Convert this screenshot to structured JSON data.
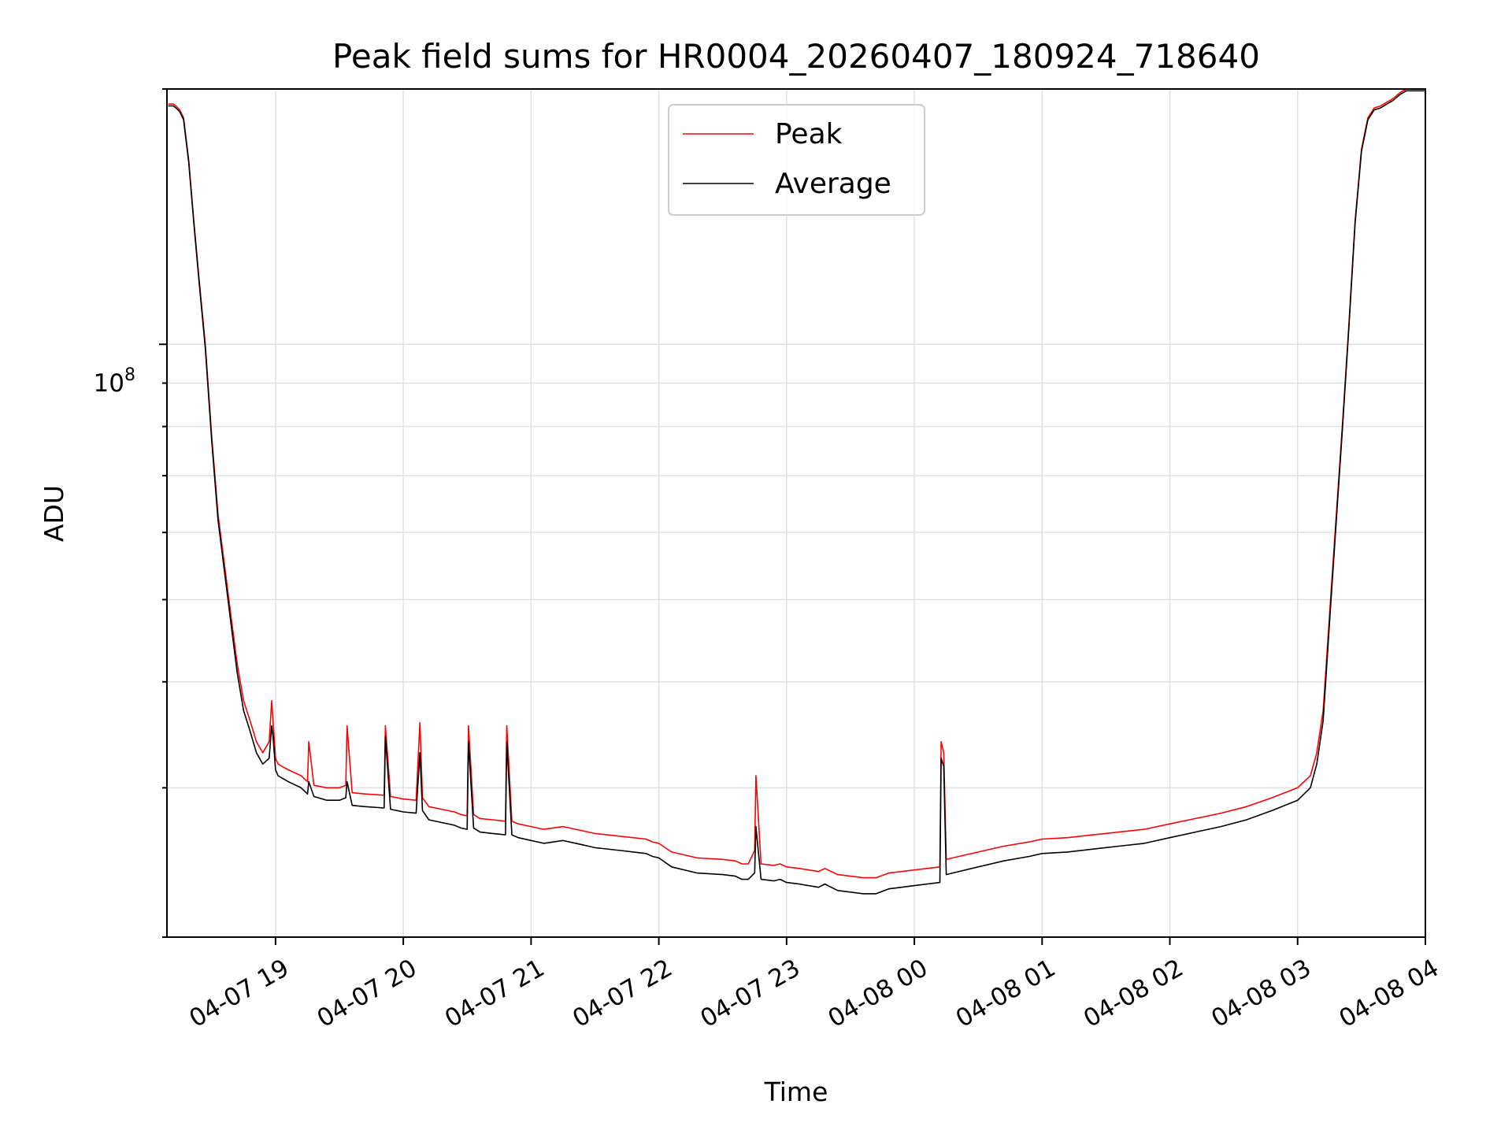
{
  "chart_data": {
    "type": "line",
    "title": "Peak field sums for HR0004_20260407_180924_718640",
    "xlabel": "Time",
    "ylabel": "ADU",
    "yscale": "log",
    "ylim": [
      20000000,
      200000000
    ],
    "xlim_hours": [
      18.15,
      28.0
    ],
    "grid": true,
    "legend_position": "upper center",
    "x_ticks": [
      {
        "label": "04-07 19",
        "hour": 19
      },
      {
        "label": "04-07 20",
        "hour": 20
      },
      {
        "label": "04-07 21",
        "hour": 21
      },
      {
        "label": "04-07 22",
        "hour": 22
      },
      {
        "label": "04-07 23",
        "hour": 23
      },
      {
        "label": "04-08 00",
        "hour": 24
      },
      {
        "label": "04-08 01",
        "hour": 25
      },
      {
        "label": "04-08 02",
        "hour": 26
      },
      {
        "label": "04-08 03",
        "hour": 27
      },
      {
        "label": "04-08 04",
        "hour": 28
      }
    ],
    "y_major_tick": {
      "label_base": "10",
      "label_exp": "8",
      "value": 100000000
    },
    "series": [
      {
        "name": "Peak",
        "color": "#ff0000",
        "x": [
          18.16,
          18.2,
          18.22,
          18.25,
          18.28,
          18.32,
          18.36,
          18.4,
          18.45,
          18.5,
          18.55,
          18.6,
          18.65,
          18.7,
          18.75,
          18.8,
          18.85,
          18.9,
          18.95,
          18.97,
          18.98,
          19.0,
          19.02,
          19.05,
          19.1,
          19.2,
          19.25,
          19.26,
          19.3,
          19.4,
          19.5,
          19.55,
          19.56,
          19.6,
          19.7,
          19.85,
          19.86,
          19.9,
          20.0,
          20.1,
          20.13,
          20.15,
          20.2,
          20.3,
          20.4,
          20.45,
          20.5,
          20.51,
          20.55,
          20.6,
          20.7,
          20.8,
          20.81,
          20.85,
          20.9,
          21.0,
          21.1,
          21.25,
          21.4,
          21.5,
          21.7,
          21.9,
          21.95,
          22.0,
          22.1,
          22.3,
          22.5,
          22.6,
          22.65,
          22.7,
          22.75,
          22.76,
          22.8,
          22.9,
          22.95,
          23.0,
          23.1,
          23.25,
          23.3,
          23.4,
          23.5,
          23.6,
          23.7,
          23.8,
          23.9,
          24.0,
          24.1,
          24.2,
          24.21,
          24.23,
          24.25,
          24.3,
          24.5,
          24.7,
          24.9,
          25.0,
          25.2,
          25.4,
          25.6,
          25.8,
          26.0,
          26.2,
          26.4,
          26.6,
          26.8,
          27.0,
          27.1,
          27.15,
          27.2,
          27.25,
          27.3,
          27.35,
          27.4,
          27.45,
          27.5,
          27.55,
          27.6,
          27.65,
          27.7,
          27.75,
          27.8,
          27.85,
          28.0
        ],
        "values": [
          192000000,
          192000000,
          191000000,
          189000000,
          185000000,
          165000000,
          140000000,
          120000000,
          100000000,
          78000000,
          63000000,
          55000000,
          48000000,
          42000000,
          38000000,
          36000000,
          34000000,
          33000000,
          34000000,
          38000000,
          36000000,
          32500000,
          32000000,
          31800000,
          31500000,
          31000000,
          30500000,
          34000000,
          30200000,
          30000000,
          30000000,
          30200000,
          35500000,
          29600000,
          29500000,
          29400000,
          35500000,
          29300000,
          29100000,
          29000000,
          35800000,
          29200000,
          28500000,
          28300000,
          28100000,
          27900000,
          27800000,
          35500000,
          27900000,
          27600000,
          27500000,
          27400000,
          35500000,
          27400000,
          27200000,
          27000000,
          26800000,
          27000000,
          26700000,
          26500000,
          26300000,
          26100000,
          25900000,
          25800000,
          25200000,
          24800000,
          24700000,
          24600000,
          24400000,
          24400000,
          25300000,
          31000000,
          24400000,
          24300000,
          24400000,
          24200000,
          24100000,
          23900000,
          24100000,
          23700000,
          23600000,
          23500000,
          23500000,
          23800000,
          23900000,
          24000000,
          24100000,
          24200000,
          34000000,
          33000000,
          24700000,
          24800000,
          25200000,
          25600000,
          25900000,
          26100000,
          26200000,
          26400000,
          26600000,
          26800000,
          27200000,
          27600000,
          28000000,
          28500000,
          29200000,
          30000000,
          31000000,
          33000000,
          37000000,
          48000000,
          62000000,
          80000000,
          105000000,
          140000000,
          170000000,
          185000000,
          190000000,
          191000000,
          193000000,
          195000000,
          198000000,
          200000000,
          200000000
        ]
      },
      {
        "name": "Average",
        "color": "#000000",
        "x": [
          18.16,
          18.2,
          18.22,
          18.25,
          18.28,
          18.32,
          18.36,
          18.4,
          18.45,
          18.5,
          18.55,
          18.6,
          18.65,
          18.7,
          18.75,
          18.8,
          18.85,
          18.9,
          18.95,
          18.97,
          18.98,
          19.0,
          19.02,
          19.05,
          19.1,
          19.2,
          19.25,
          19.26,
          19.3,
          19.4,
          19.5,
          19.55,
          19.56,
          19.6,
          19.7,
          19.85,
          19.86,
          19.9,
          20.0,
          20.1,
          20.13,
          20.15,
          20.2,
          20.3,
          20.4,
          20.45,
          20.5,
          20.51,
          20.55,
          20.6,
          20.7,
          20.8,
          20.81,
          20.85,
          20.9,
          21.0,
          21.1,
          21.25,
          21.4,
          21.5,
          21.7,
          21.9,
          21.95,
          22.0,
          22.1,
          22.3,
          22.5,
          22.6,
          22.65,
          22.7,
          22.75,
          22.76,
          22.8,
          22.9,
          22.95,
          23.0,
          23.1,
          23.25,
          23.3,
          23.4,
          23.5,
          23.6,
          23.7,
          23.8,
          23.9,
          24.0,
          24.1,
          24.2,
          24.21,
          24.23,
          24.25,
          24.3,
          24.5,
          24.7,
          24.9,
          25.0,
          25.2,
          25.4,
          25.6,
          25.8,
          26.0,
          26.2,
          26.4,
          26.6,
          26.8,
          27.0,
          27.1,
          27.15,
          27.2,
          27.25,
          27.3,
          27.35,
          27.4,
          27.45,
          27.5,
          27.55,
          27.6,
          27.65,
          27.7,
          27.75,
          27.8,
          27.85,
          28.0
        ],
        "values": [
          191000000,
          191000000,
          190000000,
          188000000,
          184000000,
          164000000,
          139000000,
          119000000,
          99000000,
          77000000,
          62000000,
          54000000,
          47000000,
          41000000,
          37000000,
          35000000,
          33000000,
          32000000,
          32500000,
          35500000,
          34500000,
          31500000,
          31000000,
          30800000,
          30500000,
          30000000,
          29500000,
          30500000,
          29300000,
          29000000,
          29000000,
          29200000,
          30500000,
          28600000,
          28500000,
          28400000,
          34500000,
          28300000,
          28100000,
          28000000,
          33000000,
          28200000,
          27500000,
          27300000,
          27100000,
          26900000,
          26800000,
          34000000,
          26900000,
          26600000,
          26500000,
          26400000,
          34000000,
          26400000,
          26200000,
          26000000,
          25800000,
          26000000,
          25700000,
          25500000,
          25300000,
          25100000,
          24900000,
          24800000,
          24200000,
          23800000,
          23700000,
          23600000,
          23400000,
          23400000,
          23800000,
          27000000,
          23400000,
          23300000,
          23400000,
          23200000,
          23100000,
          22900000,
          23100000,
          22700000,
          22600000,
          22500000,
          22500000,
          22800000,
          22900000,
          23000000,
          23100000,
          23200000,
          32500000,
          31800000,
          23700000,
          23800000,
          24200000,
          24600000,
          24900000,
          25100000,
          25200000,
          25400000,
          25600000,
          25800000,
          26200000,
          26600000,
          27000000,
          27500000,
          28200000,
          29000000,
          30000000,
          32000000,
          36000000,
          47000000,
          61000000,
          79000000,
          104000000,
          139000000,
          169000000,
          184000000,
          189000000,
          190000000,
          192000000,
          194000000,
          197000000,
          199000000,
          199000000
        ]
      }
    ]
  }
}
